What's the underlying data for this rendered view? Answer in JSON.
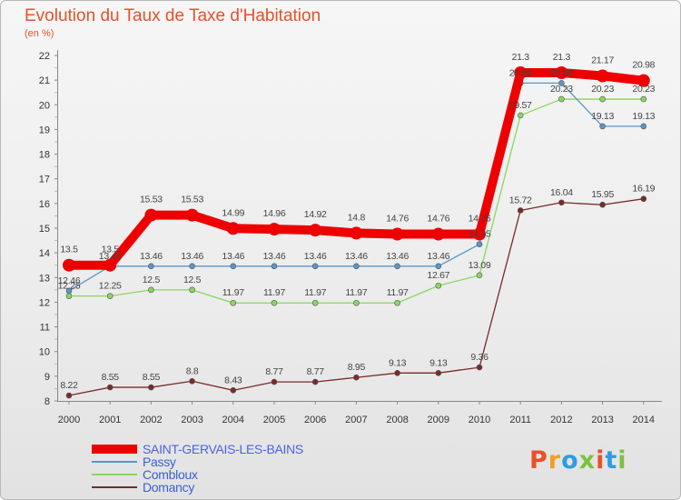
{
  "title": "Evolution du Taux de Taxe d'Habitation",
  "subtitle": "(en %)",
  "logo": {
    "text": "Proxiti",
    "colors": [
      "#e8502a",
      "#f0a020",
      "#2e9de0",
      "#7cc242",
      "#e8502a",
      "#2e9de0",
      "#7cc242"
    ]
  },
  "chart_data": {
    "type": "line",
    "x": [
      "2000",
      "2001",
      "2002",
      "2003",
      "2004",
      "2005",
      "2006",
      "2007",
      "2008",
      "2009",
      "2010",
      "2011",
      "2012",
      "2013",
      "2014"
    ],
    "ylim": [
      8,
      22
    ],
    "yticks": [
      "8",
      "9",
      "10",
      "11",
      "12",
      "13",
      "14",
      "15",
      "16",
      "17",
      "18",
      "19",
      "20",
      "21",
      "22"
    ],
    "grid": false,
    "legend_position": "bottom-left",
    "series": [
      {
        "name": "SAINT-GERVAIS-LES-BAINS",
        "color": "#ee0000",
        "values": [
          13.5,
          13.5,
          15.53,
          15.53,
          14.99,
          14.96,
          14.92,
          14.8,
          14.76,
          14.76,
          14.76,
          21.3,
          21.3,
          21.17,
          20.98
        ],
        "labels": [
          "13.5",
          "13.5",
          "15.53",
          "15.53",
          "14.99",
          "14.96",
          "14.92",
          "14.8",
          "14.76",
          "14.76",
          "14.76",
          "21.3",
          "21.3",
          "21.17",
          "20.98"
        ]
      },
      {
        "name": "Passy",
        "color": "#5a96c8",
        "values": [
          12.46,
          13.46,
          13.46,
          13.46,
          13.46,
          13.46,
          13.46,
          13.46,
          13.46,
          13.46,
          14.35,
          20.88,
          20.88,
          19.13,
          19.13
        ],
        "labels": [
          "12.46",
          "13.46",
          "13.46",
          "13.46",
          "13.46",
          "13.46",
          "13.46",
          "13.46",
          "13.46",
          "13.46",
          "14.35",
          "20.88",
          "20.88",
          "19.13",
          "19.13"
        ]
      },
      {
        "name": "Combloux",
        "color": "#88d860",
        "values": [
          12.25,
          12.25,
          12.5,
          12.5,
          11.97,
          11.97,
          11.97,
          11.97,
          11.97,
          12.67,
          13.09,
          19.57,
          20.23,
          20.23,
          20.23
        ],
        "labels": [
          "12.25",
          "12.25",
          "12.5",
          "12.5",
          "11.97",
          "11.97",
          "11.97",
          "11.97",
          "11.97",
          "12.67",
          "13.09",
          "19.57",
          "20.23",
          "20.23",
          "20.23"
        ]
      },
      {
        "name": "Domancy",
        "color": "#7a2a2a",
        "values": [
          8.22,
          8.55,
          8.55,
          8.8,
          8.43,
          8.77,
          8.77,
          8.95,
          9.13,
          9.13,
          9.36,
          15.72,
          16.04,
          15.95,
          16.19
        ],
        "labels": [
          "8.22",
          "8.55",
          "8.55",
          "8.8",
          "8.43",
          "8.77",
          "8.77",
          "8.95",
          "9.13",
          "9.13",
          "9.36",
          "15.72",
          "16.04",
          "15.95",
          "16.19"
        ]
      }
    ]
  }
}
